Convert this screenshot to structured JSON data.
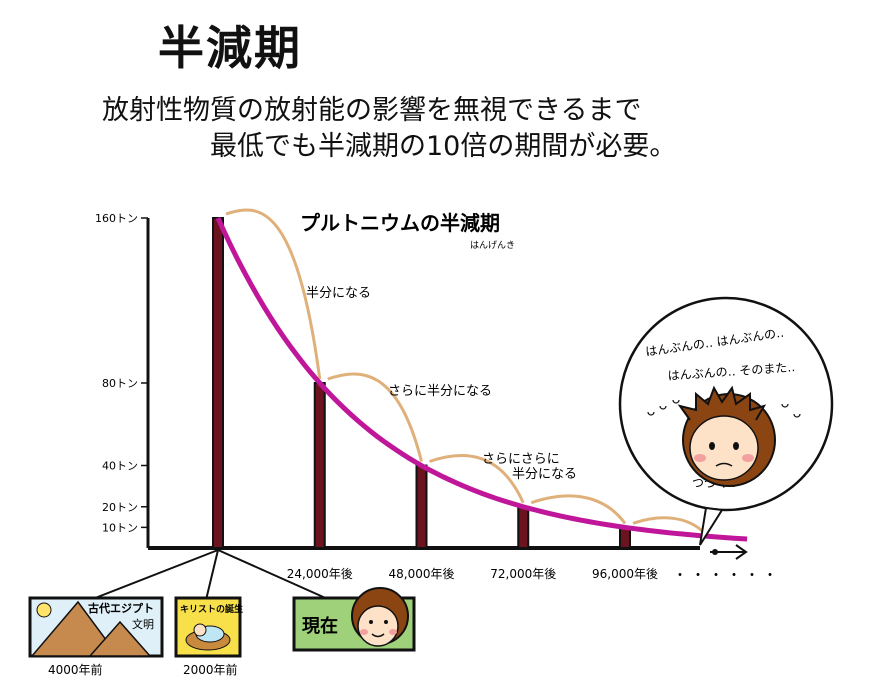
{
  "header": {
    "title": "半減期",
    "subtitle_line1": "放射性物質の放射能の影響を無視できるまで",
    "subtitle_line2": "最低でも半減期の10倍の期間が必要。"
  },
  "chart_data": {
    "type": "bar",
    "title": "プルトニウムの半減期",
    "title_reading": "はんげんき",
    "x": [
      0,
      24000,
      48000,
      72000,
      96000
    ],
    "values": [
      160,
      80,
      40,
      20,
      10
    ],
    "x_tick_labels": [
      "24,000年後",
      "48,000年後",
      "72,000年後",
      "96,000年後"
    ],
    "x_continuation": "・・・・・・",
    "y_tick_labels": [
      "160トン",
      "80トン",
      "40トン",
      "20トン",
      "10トン"
    ],
    "y_tick_values": [
      160,
      80,
      40,
      20,
      10
    ],
    "ylim": [
      0,
      160
    ],
    "curve_color": "#c0179a",
    "bar_color": "#6b1420",
    "arc_color": "#e0b07a",
    "annotations": [
      "半分になる",
      "さらに半分になる",
      "さらにさらに",
      "半分になる"
    ],
    "thought_bubble": [
      "はんぶんの‥ はんぶんの‥",
      "はんぶんの‥ そのまた‥",
      "つづく‥"
    ]
  },
  "timeline": {
    "egypt_label": "古代エジプト",
    "egypt_label2": "文明",
    "egypt_time": "4000年前",
    "christ_label": "キリストの誕生",
    "christ_time": "2000年前",
    "present_label": "現在"
  }
}
